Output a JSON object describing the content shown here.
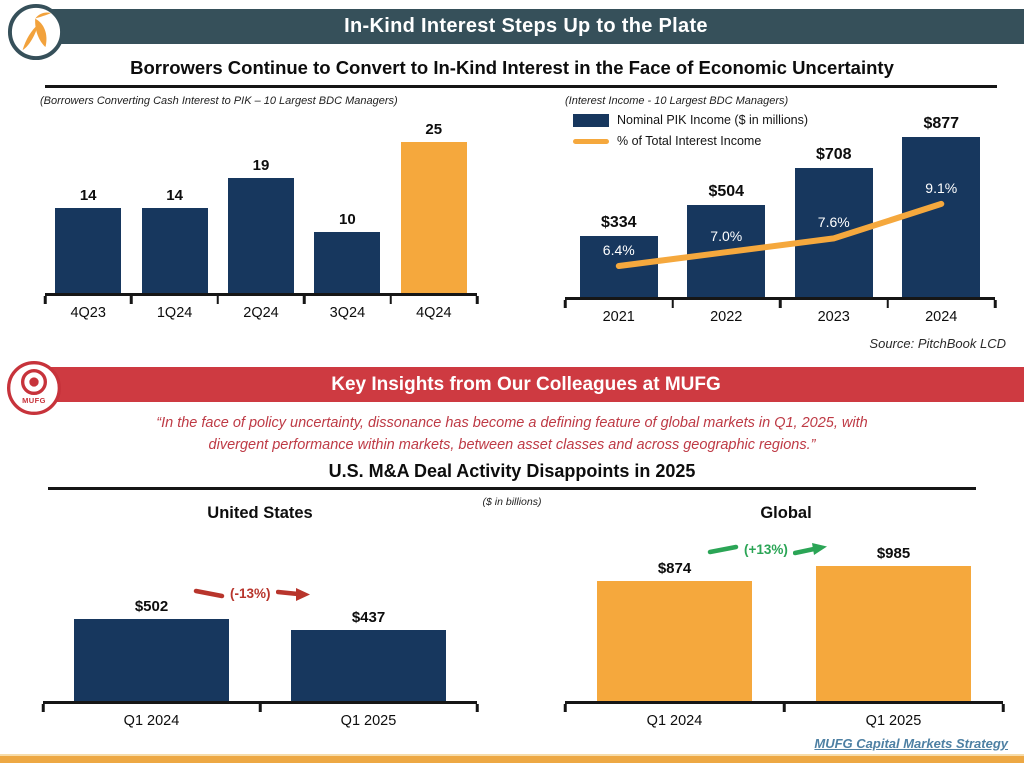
{
  "header": {
    "title": "In-Kind Interest Steps Up to the Plate"
  },
  "subtitle": "Borrowers Continue to Convert to In-Kind Interest in the Face of Economic Uncertainty",
  "source_note": "Source: PitchBook LCD",
  "banner": {
    "title": "Key Insights from Our Colleagues at MUFG",
    "logo_text": "MUFG"
  },
  "quote": {
    "line1": "“In the face of policy uncertainty, dissonance has become a defining feature of global markets in Q1, 2025, with",
    "line2": "divergent performance within markets, between asset classes and across geographic regions.”"
  },
  "ma_section": {
    "title": "U.S. M&A Deal Activity Disappoints in 2025",
    "units_note": "($ in billions)"
  },
  "footer": {
    "link": "MUFG Capital Markets Strategy"
  },
  "colors": {
    "navy": "#17375E",
    "orange": "#F5A83D",
    "teal_header": "#36505A",
    "banner_red": "#CE3A41",
    "annot_red": "#B8352C",
    "annot_green": "#2BA556",
    "link_blue": "#4E80A3",
    "bottom_gold": "#EDA844"
  },
  "chart_data": [
    {
      "id": "pik_conversions",
      "type": "bar",
      "title": "(Borrowers Converting Cash Interest to PIK – 10 Largest BDC Managers)",
      "categories": [
        "4Q23",
        "1Q24",
        "2Q24",
        "3Q24",
        "4Q24"
      ],
      "values": [
        14,
        14,
        19,
        10,
        25
      ],
      "value_labels": [
        "14",
        "14",
        "19",
        "10",
        "25"
      ],
      "bar_colors": [
        "navy",
        "navy",
        "navy",
        "navy",
        "orange"
      ],
      "ylim": [
        0,
        27
      ],
      "grid": false,
      "legend": "none"
    },
    {
      "id": "pik_income",
      "type": "bar+line",
      "title": "(Interest Income - 10 Largest BDC Managers)",
      "categories": [
        "2021",
        "2022",
        "2023",
        "2024"
      ],
      "series": [
        {
          "name": "Nominal PIK Income ($ in millions)",
          "type": "bar",
          "values": [
            334,
            504,
            708,
            877
          ],
          "labels": [
            "$334",
            "$504",
            "$708",
            "$877"
          ]
        },
        {
          "name": "% of Total Interest Income",
          "type": "line",
          "values": [
            6.4,
            7.0,
            7.6,
            9.1
          ],
          "labels": [
            "6.4%",
            "7.0%",
            "7.6%",
            "9.1%"
          ]
        }
      ],
      "legend_position": "top-left",
      "grid": false
    },
    {
      "id": "us_ma",
      "type": "bar",
      "title": "United States",
      "categories": [
        "Q1 2024",
        "Q1 2025"
      ],
      "values": [
        502,
        437
      ],
      "value_labels": [
        "$502",
        "$437"
      ],
      "bar_colors": [
        "navy",
        "navy"
      ],
      "change_label": "(-13%)",
      "change_direction": "down",
      "grid": false
    },
    {
      "id": "global_ma",
      "type": "bar",
      "title": "Global",
      "categories": [
        "Q1 2024",
        "Q1 2025"
      ],
      "values": [
        874,
        985
      ],
      "value_labels": [
        "$874",
        "$985"
      ],
      "bar_colors": [
        "orange",
        "orange"
      ],
      "change_label": "(+13%)",
      "change_direction": "up",
      "grid": false
    }
  ]
}
